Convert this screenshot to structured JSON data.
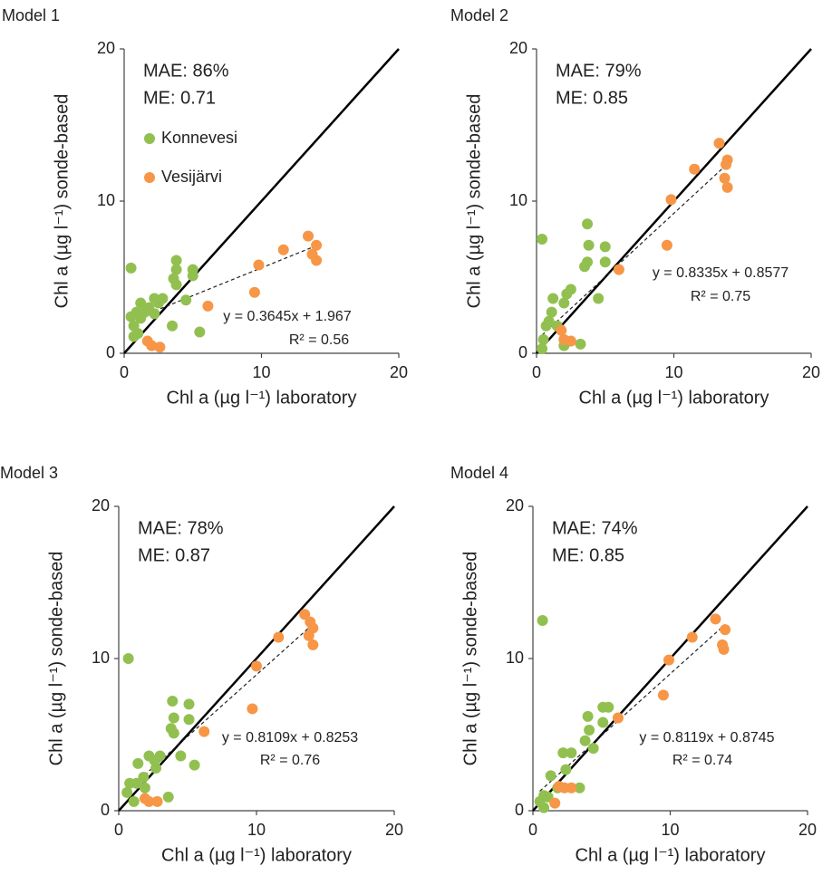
{
  "chart_data": [
    {
      "type": "scatter",
      "title": "Model 1",
      "annotations": [
        "MAE: 86%",
        "ME: 0.71",
        "y = 0.3645x + 1.967",
        "R² = 0.56"
      ],
      "x_label": "Chl a (µg l⁻¹) laboratory",
      "y_label": "Chl a (µg l⁻¹) sonde-based",
      "xlim": [
        0,
        20
      ],
      "ylim": [
        0,
        20
      ],
      "xticks": [
        0,
        10,
        20
      ],
      "yticks": [
        0,
        10,
        20
      ],
      "legend": "upper left",
      "trendline": {
        "slope": 0.3645,
        "intercept": 1.967,
        "x": [
          0.5,
          14
        ]
      },
      "series": [
        {
          "name": "Konnevesi",
          "color": "#92c050",
          "x": [
            0.5,
            0.5,
            0.7,
            0.9,
            1.2,
            1.2,
            1.5,
            1.8,
            2.2,
            2.5,
            2.8,
            2.2,
            3.5,
            3.6,
            3.8,
            3.8,
            3.8,
            4.5,
            5.0,
            5.0,
            5.5,
            0.7,
            1.0
          ],
          "values": [
            5.6,
            2.4,
            1.8,
            2.7,
            2.3,
            3.3,
            2.7,
            3.0,
            2.6,
            3.3,
            3.6,
            3.6,
            1.8,
            4.9,
            6.1,
            4.5,
            5.5,
            3.5,
            5.1,
            5.5,
            1.4,
            1.1,
            1.3
          ]
        },
        {
          "name": "Vesijärvi",
          "color": "#f79646",
          "x": [
            1.7,
            2.0,
            2.6,
            6.1,
            9.5,
            9.8,
            11.6,
            13.4,
            14.0,
            13.7,
            14.0
          ],
          "values": [
            0.8,
            0.5,
            0.4,
            3.1,
            4.0,
            5.8,
            6.8,
            7.7,
            7.1,
            6.5,
            6.1
          ]
        }
      ]
    },
    {
      "type": "scatter",
      "title": "Model 2",
      "annotations": [
        "MAE: 79%",
        "ME: 0.85",
        "y = 0.8335x + 0.8577",
        "R² = 0.75"
      ],
      "x_label": "Chl a (µg l⁻¹) laboratory",
      "y_label": "Chl a (µg l⁻¹) sonde-based",
      "xlim": [
        0,
        20
      ],
      "ylim": [
        0,
        20
      ],
      "xticks": [
        0,
        10,
        20
      ],
      "yticks": [
        0,
        10,
        20
      ],
      "trendline": {
        "slope": 0.8335,
        "intercept": 0.8577,
        "x": [
          0.4,
          14
        ]
      },
      "series": [
        {
          "color": "#92c050",
          "x": [
            0.4,
            0.5,
            0.7,
            0.9,
            1.1,
            1.2,
            1.5,
            2.0,
            2.2,
            2.5,
            3.2,
            3.5,
            3.7,
            3.8,
            3.7,
            4.5,
            5.0,
            5.0,
            0.4,
            2.0
          ],
          "values": [
            7.5,
            0.9,
            1.8,
            2.1,
            2.7,
            3.6,
            1.8,
            3.3,
            3.9,
            4.2,
            0.6,
            5.7,
            8.5,
            7.1,
            6.0,
            3.6,
            7.0,
            6.0,
            0.3,
            0.5
          ]
        },
        {
          "color": "#f79646",
          "x": [
            1.8,
            2.0,
            2.5,
            6.0,
            9.5,
            9.8,
            11.5,
            13.3,
            13.9,
            13.7,
            13.9,
            13.8
          ],
          "values": [
            1.5,
            0.9,
            0.8,
            5.5,
            7.1,
            10.1,
            12.1,
            13.8,
            12.7,
            11.5,
            10.9,
            12.4
          ]
        }
      ]
    },
    {
      "type": "scatter",
      "title": "Model 3",
      "annotations": [
        "MAE: 78%",
        "ME: 0.87",
        "y = 0.8109x + 0.8253",
        "R² = 0.76"
      ],
      "x_label": "Chl a (µg l⁻¹) laboratory",
      "y_label": "Chl a (µg l⁻¹) sonde-based",
      "xlim": [
        0,
        20
      ],
      "ylim": [
        0,
        20
      ],
      "xticks": [
        0,
        10,
        20
      ],
      "yticks": [
        0,
        10,
        20
      ],
      "trendline": {
        "slope": 0.8109,
        "intercept": 0.8253,
        "x": [
          0.5,
          14
        ]
      },
      "series": [
        {
          "color": "#92c050",
          "x": [
            0.7,
            0.6,
            0.8,
            1.3,
            1.4,
            1.8,
            2.2,
            2.6,
            2.7,
            3.0,
            3.6,
            3.8,
            3.9,
            4.0,
            4.0,
            4.5,
            5.1,
            5.1,
            5.5,
            1.1,
            1.9
          ],
          "values": [
            10.0,
            1.2,
            1.8,
            1.8,
            3.1,
            2.2,
            3.6,
            3.3,
            2.8,
            3.6,
            0.9,
            5.4,
            7.2,
            5.1,
            6.1,
            3.6,
            7.0,
            6.0,
            3.0,
            0.6,
            1.5
          ]
        },
        {
          "color": "#f79646",
          "x": [
            1.9,
            2.2,
            2.8,
            6.2,
            9.7,
            10.0,
            11.6,
            13.5,
            14.1,
            13.8,
            14.1,
            13.9
          ],
          "values": [
            0.8,
            0.6,
            0.6,
            5.2,
            6.7,
            9.5,
            11.4,
            12.9,
            12.0,
            11.5,
            10.9,
            12.4
          ]
        }
      ]
    },
    {
      "type": "scatter",
      "title": "Model 4",
      "annotations": [
        "MAE: 74%",
        "ME: 0.85",
        "y = 0.8119x + 0.8745",
        "R² = 0.74"
      ],
      "x_label": "Chl a (µg l⁻¹) laboratory",
      "y_label": "Chl a (µg l⁻¹) sonde-based",
      "xlim": [
        0,
        20
      ],
      "ylim": [
        0,
        20
      ],
      "xticks": [
        0,
        10,
        20
      ],
      "yticks": [
        0,
        10,
        20
      ],
      "trendline": {
        "slope": 0.8119,
        "intercept": 0.8745,
        "x": [
          0.5,
          14
        ]
      },
      "series": [
        {
          "color": "#92c050",
          "x": [
            0.7,
            0.5,
            0.8,
            1.1,
            1.3,
            1.8,
            2.2,
            2.8,
            2.4,
            3.4,
            3.8,
            4.0,
            4.1,
            4.4,
            5.1,
            5.1,
            5.5,
            0.8
          ],
          "values": [
            12.5,
            0.6,
            1.0,
            0.9,
            2.3,
            1.5,
            3.8,
            3.8,
            2.7,
            1.5,
            4.6,
            6.2,
            5.3,
            4.1,
            5.8,
            6.8,
            6.8,
            0.2
          ]
        },
        {
          "color": "#f79646",
          "x": [
            1.6,
            1.9,
            2.3,
            2.8,
            6.2,
            9.5,
            9.9,
            11.6,
            13.3,
            14.0,
            13.8,
            13.9
          ],
          "values": [
            0.5,
            1.6,
            1.5,
            1.5,
            6.1,
            7.6,
            9.9,
            11.4,
            12.6,
            11.9,
            10.9,
            10.6
          ]
        }
      ]
    }
  ]
}
